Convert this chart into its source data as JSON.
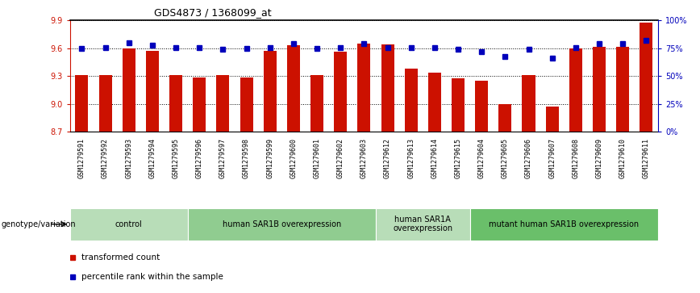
{
  "title": "GDS4873 / 1368099_at",
  "samples": [
    "GSM1279591",
    "GSM1279592",
    "GSM1279593",
    "GSM1279594",
    "GSM1279595",
    "GSM1279596",
    "GSM1279597",
    "GSM1279598",
    "GSM1279599",
    "GSM1279600",
    "GSM1279601",
    "GSM1279602",
    "GSM1279603",
    "GSM1279612",
    "GSM1279613",
    "GSM1279614",
    "GSM1279615",
    "GSM1279604",
    "GSM1279605",
    "GSM1279606",
    "GSM1279607",
    "GSM1279608",
    "GSM1279609",
    "GSM1279610",
    "GSM1279611"
  ],
  "red_values": [
    9.31,
    9.31,
    9.6,
    9.57,
    9.31,
    9.29,
    9.31,
    9.29,
    9.57,
    9.63,
    9.31,
    9.56,
    9.65,
    9.64,
    9.38,
    9.34,
    9.28,
    9.25,
    9.0,
    9.31,
    8.97,
    9.6,
    9.62,
    9.62,
    9.88
  ],
  "blue_values": [
    75,
    76,
    80,
    78,
    76,
    76,
    74,
    75,
    76,
    79,
    75,
    76,
    79,
    76,
    76,
    76,
    74,
    72,
    68,
    74,
    66,
    76,
    79,
    79,
    82
  ],
  "ylim_left": [
    8.7,
    9.9
  ],
  "ylim_right": [
    0,
    100
  ],
  "yticks_left": [
    8.7,
    9.0,
    9.3,
    9.6,
    9.9
  ],
  "yticks_right": [
    0,
    25,
    50,
    75,
    100
  ],
  "ytick_right_labels": [
    "0%",
    "25%",
    "50%",
    "75%",
    "100%"
  ],
  "groups": [
    {
      "label": "control",
      "start": 0,
      "end": 5,
      "color": "#b8ddb8"
    },
    {
      "label": "human SAR1B overexpression",
      "start": 5,
      "end": 13,
      "color": "#90cc90"
    },
    {
      "label": "human SAR1A\noverexpression",
      "start": 13,
      "end": 17,
      "color": "#b8ddb8"
    },
    {
      "label": "mutant human SAR1B overexpression",
      "start": 17,
      "end": 25,
      "color": "#6abf6a"
    }
  ],
  "bar_color": "#cc1100",
  "dot_color": "#0000bb",
  "bg_color": "#ffffff",
  "xtick_bg_color": "#cccccc",
  "group_label_text": "genotype/variation"
}
